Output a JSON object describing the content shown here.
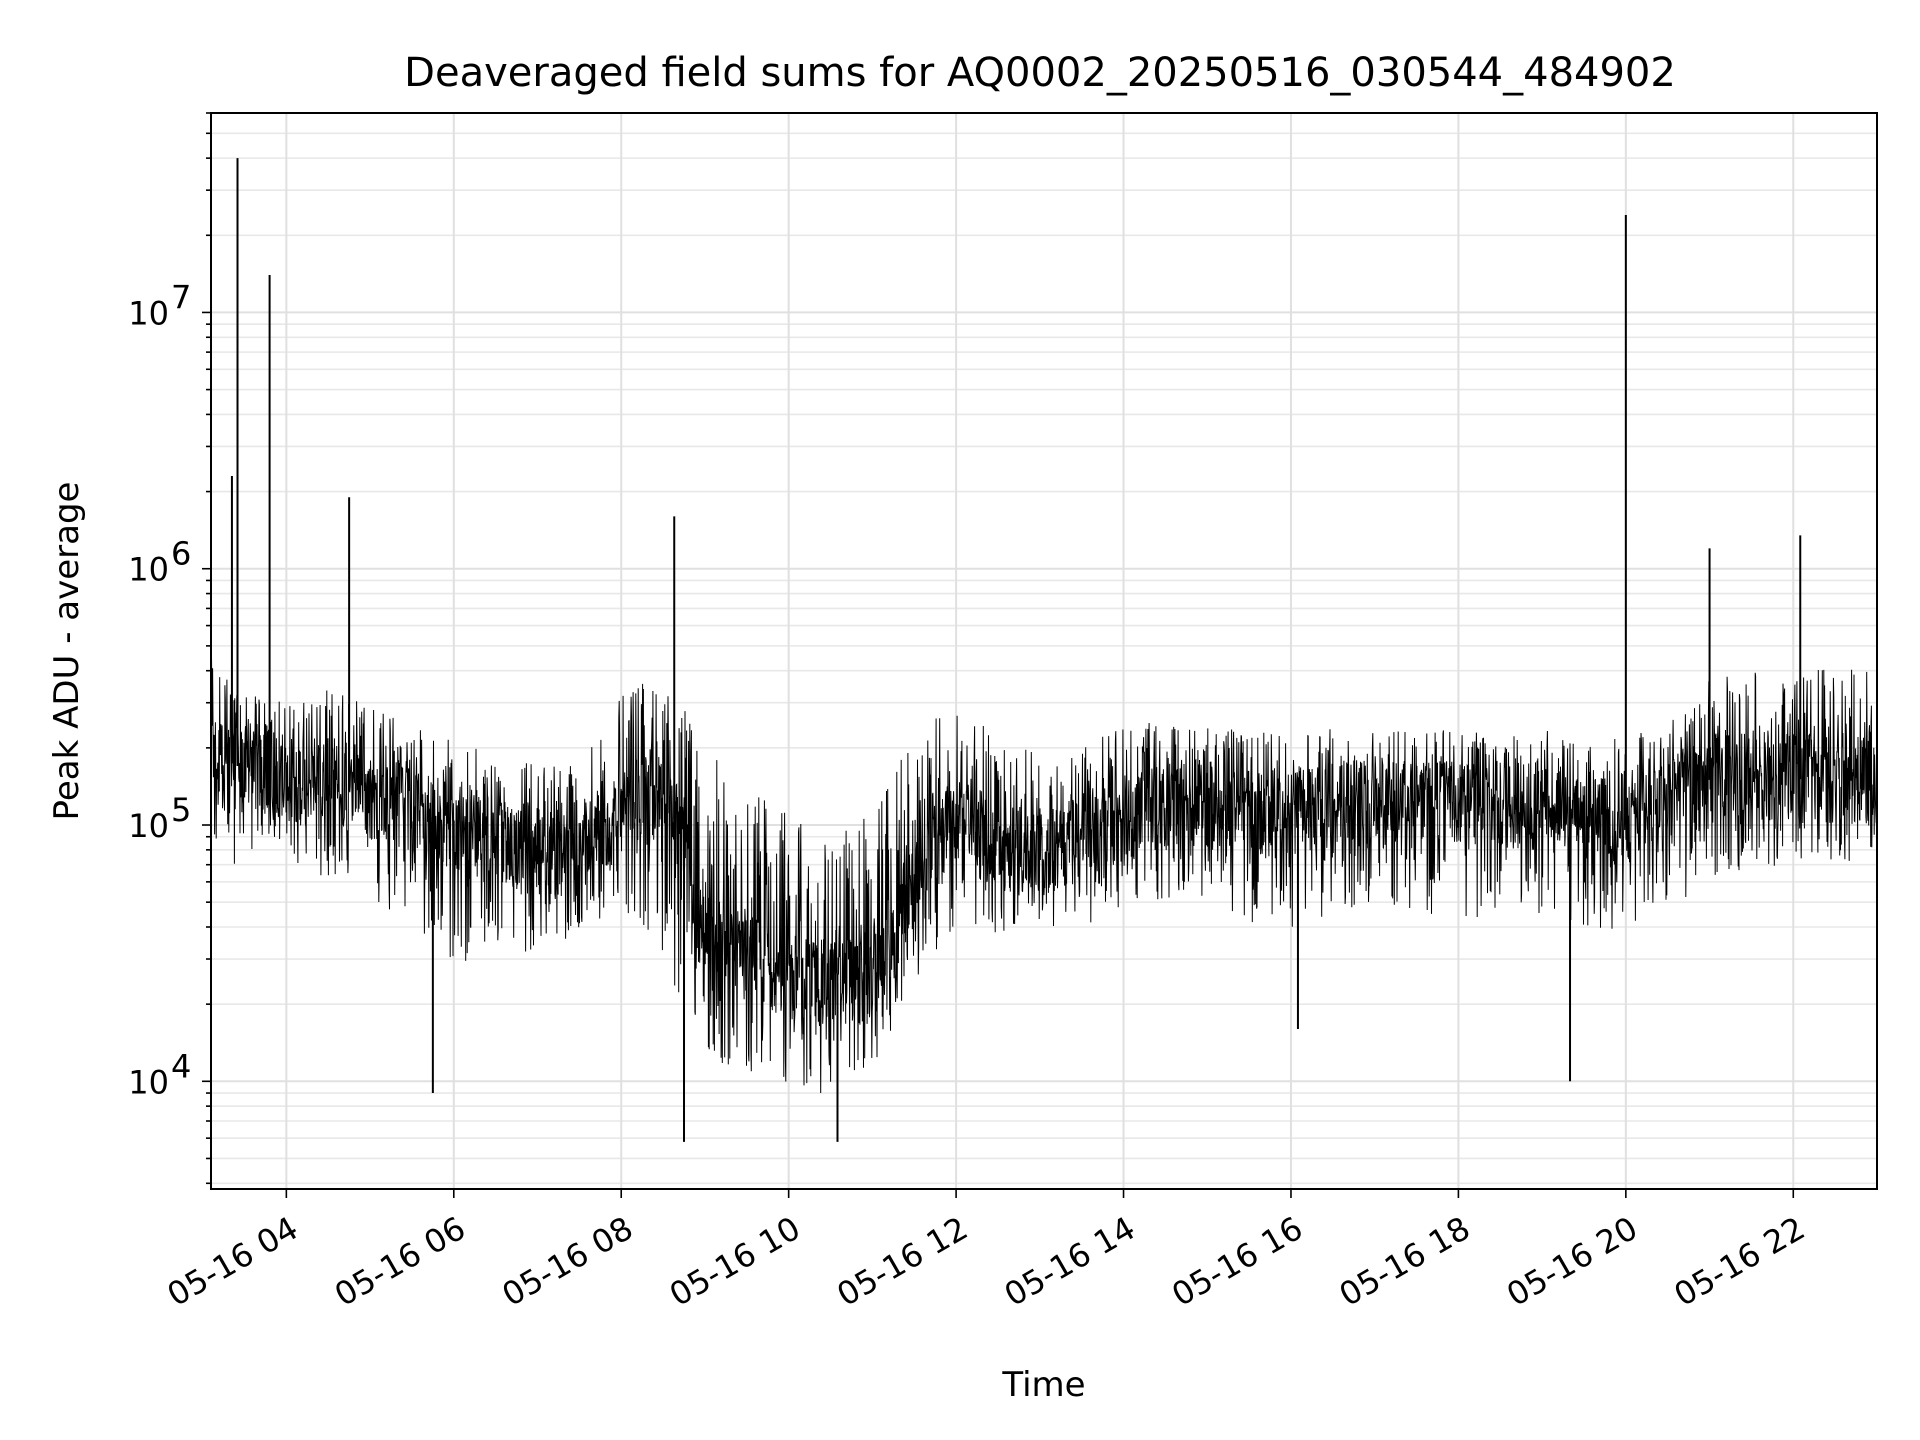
{
  "chart_data": {
    "type": "line",
    "title": "Deaveraged field sums for AQ0002_20250516_030544_484902",
    "xlabel": "Time",
    "ylabel": "Peak ADU - average",
    "y_scale": "log",
    "ylim": [
      3800,
      60000000
    ],
    "xlim": [
      "2025-05-16 03:06",
      "2025-05-16 23:00"
    ],
    "grid": true,
    "line_color": "#000000",
    "x_ticks": [
      {
        "t": "2025-05-16 04:00",
        "label": "05-16 04"
      },
      {
        "t": "2025-05-16 06:00",
        "label": "05-16 06"
      },
      {
        "t": "2025-05-16 08:00",
        "label": "05-16 08"
      },
      {
        "t": "2025-05-16 10:00",
        "label": "05-16 10"
      },
      {
        "t": "2025-05-16 12:00",
        "label": "05-16 12"
      },
      {
        "t": "2025-05-16 14:00",
        "label": "05-16 14"
      },
      {
        "t": "2025-05-16 16:00",
        "label": "05-16 16"
      },
      {
        "t": "2025-05-16 18:00",
        "label": "05-16 18"
      },
      {
        "t": "2025-05-16 20:00",
        "label": "05-16 20"
      },
      {
        "t": "2025-05-16 22:00",
        "label": "05-16 22"
      }
    ],
    "y_ticks": [
      {
        "value": 10000,
        "base": "10",
        "exp": "4"
      },
      {
        "value": 100000,
        "base": "10",
        "exp": "5"
      },
      {
        "value": 1000000,
        "base": "10",
        "exp": "6"
      },
      {
        "value": 10000000,
        "base": "10",
        "exp": "7"
      }
    ],
    "series": [
      {
        "x": [
          "2025-05-16 03:06",
          "2025-05-16 03:15",
          "2025-05-16 03:20",
          "2025-05-16 03:30",
          "2025-05-16 03:45",
          "2025-05-16 04:00",
          "2025-05-16 04:30",
          "2025-05-16 05:00",
          "2025-05-16 05:30",
          "2025-05-16 06:00",
          "2025-05-16 06:30",
          "2025-05-16 07:00",
          "2025-05-16 07:30",
          "2025-05-16 08:00",
          "2025-05-16 08:30",
          "2025-05-16 09:00",
          "2025-05-16 09:30",
          "2025-05-16 10:00",
          "2025-05-16 10:30",
          "2025-05-16 11:00",
          "2025-05-16 11:30",
          "2025-05-16 12:00",
          "2025-05-16 12:30",
          "2025-05-16 13:00",
          "2025-05-16 13:30",
          "2025-05-16 14:00",
          "2025-05-16 14:30",
          "2025-05-16 15:00",
          "2025-05-16 15:30",
          "2025-05-16 16:00",
          "2025-05-16 16:30",
          "2025-05-16 17:00",
          "2025-05-16 17:30",
          "2025-05-16 18:00",
          "2025-05-16 18:30",
          "2025-05-16 19:00",
          "2025-05-16 19:30",
          "2025-05-16 20:00",
          "2025-05-16 20:30",
          "2025-05-16 21:00",
          "2025-05-16 21:30",
          "2025-05-16 22:00",
          "2025-05-16 22:30",
          "2025-05-16 23:00"
        ],
        "y": [
          180000,
          170000,
          175000,
          165000,
          160000,
          150000,
          145000,
          130000,
          115000,
          100000,
          90000,
          80000,
          75000,
          110000,
          150000,
          40000,
          30000,
          25000,
          24000,
          25000,
          60000,
          110000,
          80000,
          80000,
          90000,
          110000,
          120000,
          120000,
          115000,
          110000,
          120000,
          125000,
          120000,
          120000,
          120000,
          115000,
          115000,
          110000,
          120000,
          150000,
          160000,
          150000,
          155000,
          150000
        ],
        "low": [
          70000,
          60000,
          55000,
          60000,
          70000,
          60000,
          50000,
          40000,
          30000,
          20000,
          25000,
          25000,
          30000,
          40000,
          20000,
          9000,
          8000,
          7000,
          7000,
          9000,
          20000,
          30000,
          30000,
          35000,
          30000,
          40000,
          40000,
          35000,
          30000,
          30000,
          35000,
          40000,
          35000,
          35000,
          30000,
          35000,
          30000,
          30000,
          35000,
          50000,
          55000,
          55000,
          60000,
          60000
        ],
        "high": [
          700000,
          550000,
          450000,
          400000,
          400000,
          380000,
          450000,
          420000,
          320000,
          280000,
          250000,
          230000,
          240000,
          450000,
          550000,
          350000,
          250000,
          180000,
          150000,
          180000,
          350000,
          450000,
          300000,
          250000,
          280000,
          330000,
          320000,
          300000,
          300000,
          280000,
          300000,
          300000,
          300000,
          300000,
          300000,
          300000,
          280000,
          280000,
          350000,
          500000,
          550000,
          500000,
          600000,
          600000
        ]
      }
    ],
    "spikes": [
      {
        "x": "2025-05-16 03:25",
        "y": 40000000
      },
      {
        "x": "2025-05-16 03:48",
        "y": 14000000
      },
      {
        "x": "2025-05-16 03:21",
        "y": 2300000
      },
      {
        "x": "2025-05-16 04:45",
        "y": 1900000
      },
      {
        "x": "2025-05-16 08:38",
        "y": 1600000
      },
      {
        "x": "2025-05-16 20:00",
        "y": 24000000
      },
      {
        "x": "2025-05-16 22:05",
        "y": 1350000
      },
      {
        "x": "2025-05-16 21:00",
        "y": 1200000
      },
      {
        "x": "2025-05-16 16:05",
        "y": 16000
      },
      {
        "x": "2025-05-16 19:20",
        "y": 10000
      },
      {
        "x": "2025-05-16 05:45",
        "y": 9000
      },
      {
        "x": "2025-05-16 08:45",
        "y": 5800
      },
      {
        "x": "2025-05-16 10:35",
        "y": 5800
      }
    ]
  }
}
